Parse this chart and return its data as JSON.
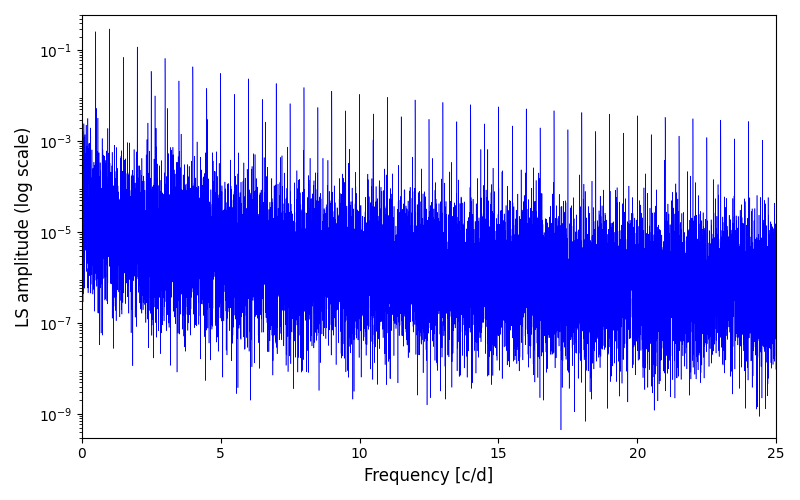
{
  "xlabel": "Frequency [c/d]",
  "ylabel": "LS amplitude (log scale)",
  "xlim": [
    0,
    25
  ],
  "ylim": [
    3e-10,
    0.6
  ],
  "yticks": [
    1e-09,
    1e-07,
    1e-05,
    0.001,
    0.1
  ],
  "line_color": "#0000ff",
  "background_color": "#ffffff",
  "freq_max": 25.0,
  "n_points": 15000,
  "seed": 7,
  "figsize": [
    8.0,
    5.0
  ],
  "dpi": 100,
  "envelope_base": 3e-05,
  "envelope_power": 1.3,
  "noise_sigma": 2.0,
  "peak_sigma": 1.8
}
